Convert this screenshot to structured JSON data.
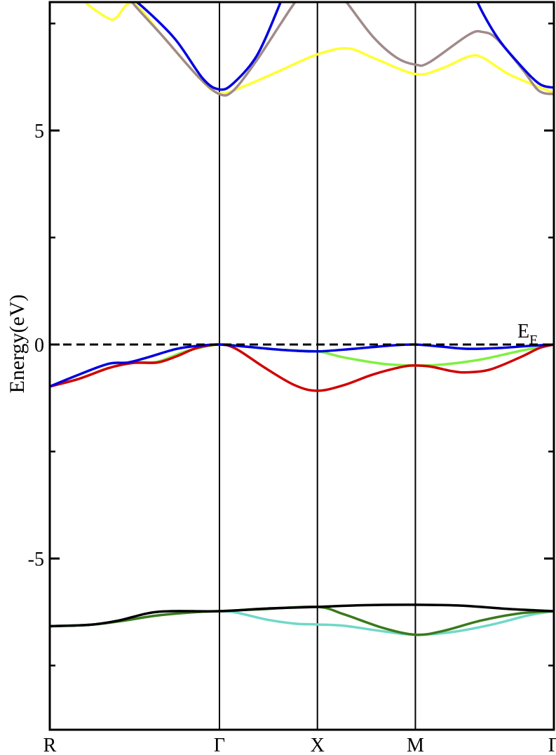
{
  "chart_data": {
    "type": "line",
    "title": "",
    "xlabel": "",
    "ylabel": "Energy(eV)",
    "ylim": [
      -9,
      8
    ],
    "xlim": [
      0,
      2.573
    ],
    "yticks": [
      {
        "value": 5,
        "label": "5"
      },
      {
        "value": 0,
        "label": "0"
      },
      {
        "value": -5,
        "label": "-5"
      }
    ],
    "yminor_ticks": [
      7.5,
      2.5,
      -2.5,
      -7.5
    ],
    "kpoints": [
      {
        "label": "R",
        "x": 0
      },
      {
        "label": "Γ",
        "x": 0.866
      },
      {
        "label": "X",
        "x": 1.366
      },
      {
        "label": "M",
        "x": 1.866
      },
      {
        "label": "Γ",
        "x": 2.573
      }
    ],
    "fermi_level": {
      "value": 0,
      "label_main": "E",
      "label_sub": "F",
      "style": "dashed"
    },
    "grid": false,
    "series": [
      {
        "color": "#70d8c8",
        "points": [
          [
            0,
            -6.58
          ],
          [
            0.2,
            -6.55
          ],
          [
            0.35,
            -6.47
          ],
          [
            0.55,
            -6.33
          ],
          [
            0.75,
            -6.25
          ],
          [
            0.866,
            -6.23
          ],
          [
            0.95,
            -6.26
          ],
          [
            1.1,
            -6.42
          ],
          [
            1.25,
            -6.52
          ],
          [
            1.366,
            -6.54
          ],
          [
            1.5,
            -6.57
          ],
          [
            1.7,
            -6.7
          ],
          [
            1.866,
            -6.78
          ],
          [
            2.05,
            -6.72
          ],
          [
            2.25,
            -6.55
          ],
          [
            2.45,
            -6.32
          ],
          [
            2.573,
            -6.23
          ]
        ]
      },
      {
        "color": "#3a7a1a",
        "points": [
          [
            0,
            -6.58
          ],
          [
            0.2,
            -6.55
          ],
          [
            0.35,
            -6.47
          ],
          [
            0.55,
            -6.33
          ],
          [
            0.75,
            -6.25
          ],
          [
            0.866,
            -6.23
          ],
          [
            1.1,
            -6.18
          ],
          [
            1.366,
            -6.13
          ],
          [
            1.5,
            -6.3
          ],
          [
            1.7,
            -6.62
          ],
          [
            1.866,
            -6.78
          ],
          [
            2.0,
            -6.7
          ],
          [
            2.2,
            -6.45
          ],
          [
            2.4,
            -6.28
          ],
          [
            2.573,
            -6.23
          ]
        ]
      },
      {
        "color": "#000000",
        "points": [
          [
            0,
            -6.58
          ],
          [
            0.2,
            -6.55
          ],
          [
            0.35,
            -6.45
          ],
          [
            0.5,
            -6.28
          ],
          [
            0.62,
            -6.23
          ],
          [
            0.866,
            -6.23
          ],
          [
            1.1,
            -6.17
          ],
          [
            1.366,
            -6.13
          ],
          [
            1.6,
            -6.09
          ],
          [
            1.866,
            -6.08
          ],
          [
            2.1,
            -6.1
          ],
          [
            2.35,
            -6.18
          ],
          [
            2.573,
            -6.23
          ]
        ]
      },
      {
        "color": "#80f040",
        "points": [
          [
            0,
            -0.98
          ],
          [
            0.15,
            -0.8
          ],
          [
            0.3,
            -0.55
          ],
          [
            0.425,
            -0.42
          ],
          [
            0.55,
            -0.4
          ],
          [
            0.7,
            -0.15
          ],
          [
            0.866,
            0
          ],
          [
            1.0,
            -0.05
          ],
          [
            1.2,
            -0.13
          ],
          [
            1.366,
            -0.16
          ],
          [
            1.5,
            -0.3
          ],
          [
            1.7,
            -0.45
          ],
          [
            1.866,
            -0.49
          ],
          [
            2.0,
            -0.47
          ],
          [
            2.2,
            -0.35
          ],
          [
            2.4,
            -0.15
          ],
          [
            2.573,
            0
          ]
        ]
      },
      {
        "color": "#d00000",
        "points": [
          [
            0,
            -0.98
          ],
          [
            0.15,
            -0.8
          ],
          [
            0.3,
            -0.55
          ],
          [
            0.425,
            -0.43
          ],
          [
            0.55,
            -0.42
          ],
          [
            0.65,
            -0.27
          ],
          [
            0.75,
            -0.08
          ],
          [
            0.866,
            0
          ],
          [
            0.95,
            -0.1
          ],
          [
            1.1,
            -0.55
          ],
          [
            1.25,
            -0.95
          ],
          [
            1.366,
            -1.08
          ],
          [
            1.5,
            -0.95
          ],
          [
            1.65,
            -0.7
          ],
          [
            1.8,
            -0.52
          ],
          [
            1.866,
            -0.49
          ],
          [
            1.95,
            -0.52
          ],
          [
            2.05,
            -0.62
          ],
          [
            2.13,
            -0.65
          ],
          [
            2.25,
            -0.58
          ],
          [
            2.4,
            -0.3
          ],
          [
            2.5,
            -0.08
          ],
          [
            2.573,
            0
          ]
        ]
      },
      {
        "color": "#0000e0",
        "points": [
          [
            0,
            -0.98
          ],
          [
            0.15,
            -0.7
          ],
          [
            0.3,
            -0.45
          ],
          [
            0.4,
            -0.42
          ],
          [
            0.5,
            -0.3
          ],
          [
            0.65,
            -0.1
          ],
          [
            0.78,
            -0.02
          ],
          [
            0.866,
            0
          ],
          [
            1.0,
            -0.05
          ],
          [
            1.2,
            -0.13
          ],
          [
            1.366,
            -0.16
          ],
          [
            1.55,
            -0.1
          ],
          [
            1.75,
            -0.02
          ],
          [
            1.866,
            0
          ],
          [
            2.0,
            -0.05
          ],
          [
            2.13,
            -0.1
          ],
          [
            2.3,
            -0.08
          ],
          [
            2.45,
            -0.03
          ],
          [
            2.573,
            0
          ]
        ]
      },
      {
        "color": "#ffff33",
        "points": [
          [
            0.15,
            8.2
          ],
          [
            0.193,
            7.95
          ],
          [
            0.3,
            7.62
          ],
          [
            0.34,
            7.64
          ],
          [
            0.425,
            7.97
          ],
          [
            0.579,
            7.19
          ],
          [
            0.757,
            6.26
          ],
          [
            0.866,
            5.87
          ],
          [
            1.0,
            6.05
          ],
          [
            1.175,
            6.4
          ],
          [
            1.366,
            6.78
          ],
          [
            1.521,
            6.92
          ],
          [
            1.65,
            6.7
          ],
          [
            1.866,
            6.32
          ],
          [
            2.0,
            6.45
          ],
          [
            2.139,
            6.73
          ],
          [
            2.211,
            6.7
          ],
          [
            2.35,
            6.3
          ],
          [
            2.573,
            5.88
          ]
        ]
      },
      {
        "color": "#a08a8a",
        "points": [
          [
            0.4,
            8.2
          ],
          [
            0.425,
            7.97
          ],
          [
            0.579,
            7.19
          ],
          [
            0.757,
            6.26
          ],
          [
            0.866,
            5.85
          ],
          [
            0.936,
            5.93
          ],
          [
            1.05,
            6.6
          ],
          [
            1.175,
            7.47
          ],
          [
            1.246,
            7.96
          ],
          [
            1.38,
            8.8
          ],
          [
            1.521,
            7.96
          ],
          [
            1.65,
            7.19
          ],
          [
            1.771,
            6.7
          ],
          [
            1.866,
            6.54
          ],
          [
            1.936,
            6.59
          ],
          [
            2.139,
            7.24
          ],
          [
            2.211,
            7.3
          ],
          [
            2.282,
            7.14
          ],
          [
            2.414,
            6.42
          ],
          [
            2.496,
            5.93
          ],
          [
            2.573,
            5.85
          ]
        ]
      },
      {
        "color": "#0000e0",
        "points": [
          [
            0.38,
            8.2
          ],
          [
            0.471,
            7.9
          ],
          [
            0.639,
            7.14
          ],
          [
            0.782,
            6.21
          ],
          [
            0.866,
            5.96
          ],
          [
            0.936,
            6.1
          ],
          [
            1.057,
            6.75
          ],
          [
            1.164,
            7.84
          ],
          [
            1.2,
            8.3
          ]
        ]
      },
      {
        "color": "#0000e0",
        "points": [
          [
            2.15,
            8.5
          ],
          [
            2.186,
            7.97
          ],
          [
            2.282,
            7.19
          ],
          [
            2.389,
            6.59
          ],
          [
            2.496,
            6.1
          ],
          [
            2.573,
            6.0
          ]
        ]
      }
    ]
  }
}
